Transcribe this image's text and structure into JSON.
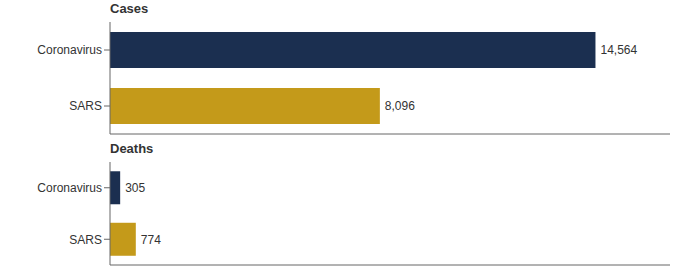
{
  "chart_data": [
    {
      "type": "bar",
      "orientation": "horizontal",
      "title": "Cases",
      "categories": [
        "Coronavirus",
        "SARS"
      ],
      "values": [
        14564,
        8096
      ],
      "value_labels": [
        "14,564",
        "8,096"
      ],
      "colors": [
        "#1b2f50",
        "#c49a1a"
      ],
      "xlim": [
        0,
        16800
      ],
      "data_labels": true,
      "tick_labels": "y",
      "grid": false
    },
    {
      "type": "bar",
      "orientation": "horizontal",
      "title": "Deaths",
      "categories": [
        "Coronavirus",
        "SARS"
      ],
      "values": [
        305,
        774
      ],
      "value_labels": [
        "305",
        "774"
      ],
      "colors": [
        "#1b2f50",
        "#c49a1a"
      ],
      "xlim": [
        0,
        16800
      ],
      "data_labels": true,
      "tick_labels": "y",
      "grid": false
    }
  ]
}
